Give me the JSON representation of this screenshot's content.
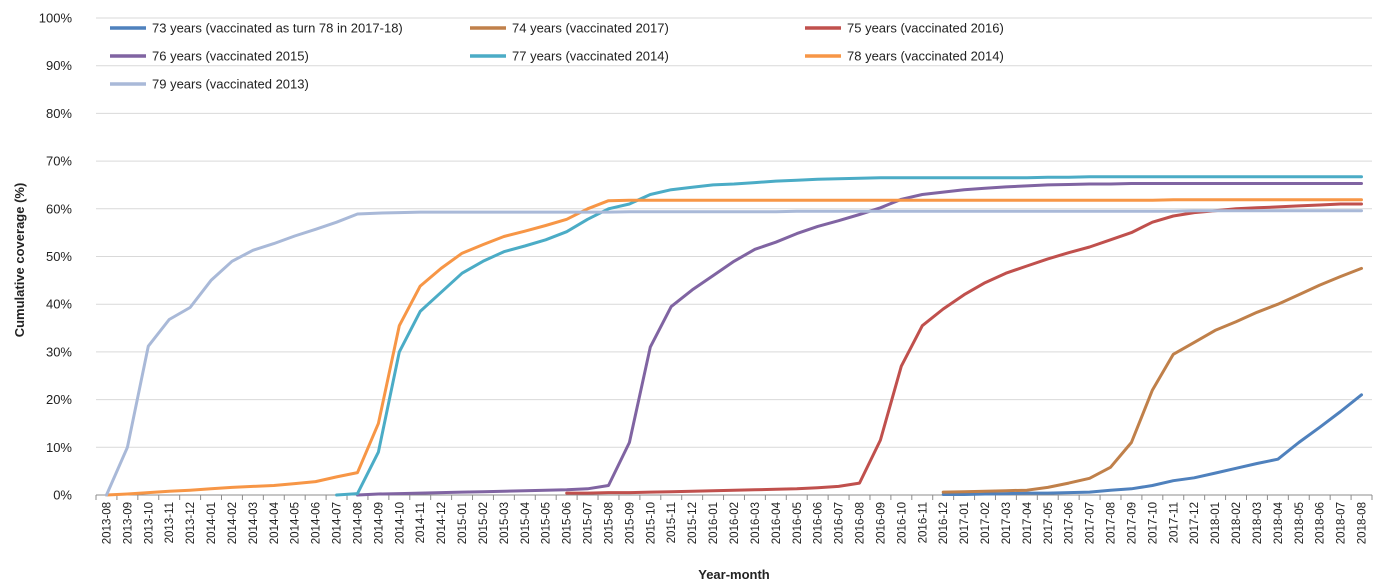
{
  "chart_data": {
    "type": "line",
    "xlabel": "Year-month",
    "ylabel": "Cumulative coverage (%)",
    "ylim": [
      0,
      100
    ],
    "yticks": [
      "0%",
      "10%",
      "20%",
      "30%",
      "40%",
      "50%",
      "60%",
      "70%",
      "80%",
      "90%",
      "100%"
    ],
    "grid": "horizontal",
    "legend_position": "top",
    "categories": [
      "2013-08",
      "2013-09",
      "2013-10",
      "2013-11",
      "2013-12",
      "2014-01",
      "2014-02",
      "2014-03",
      "2014-04",
      "2014-05",
      "2014-06",
      "2014-07",
      "2014-08",
      "2014-09",
      "2014-10",
      "2014-11",
      "2014-12",
      "2015-01",
      "2015-02",
      "2015-03",
      "2015-04",
      "2015-05",
      "2015-06",
      "2015-07",
      "2015-08",
      "2015-09",
      "2015-10",
      "2015-11",
      "2015-12",
      "2016-01",
      "2016-02",
      "2016-03",
      "2016-04",
      "2016-05",
      "2016-06",
      "2016-07",
      "2016-08",
      "2016-09",
      "2016-10",
      "2016-11",
      "2016-12",
      "2017-01",
      "2017-02",
      "2017-03",
      "2017-04",
      "2017-05",
      "2017-06",
      "2017-07",
      "2017-08",
      "2017-09",
      "2017-10",
      "2017-11",
      "2017-12",
      "2018-01",
      "2018-02",
      "2018-03",
      "2018-04",
      "2018-05",
      "2018-06",
      "2018-07",
      "2018-08"
    ],
    "series": [
      {
        "name": "73 years (vaccinated as turn 78 in 2017-18)",
        "color": "#4F81BD",
        "values": [
          null,
          null,
          null,
          null,
          null,
          null,
          null,
          null,
          null,
          null,
          null,
          null,
          null,
          null,
          null,
          null,
          null,
          null,
          null,
          null,
          null,
          null,
          null,
          null,
          null,
          null,
          null,
          null,
          null,
          null,
          null,
          null,
          null,
          null,
          null,
          null,
          null,
          null,
          null,
          null,
          0.1,
          0.1,
          0.2,
          0.3,
          0.4,
          0.4,
          0.5,
          0.6,
          1.0,
          1.3,
          2.0,
          3.0,
          3.6,
          4.6,
          5.6,
          6.6,
          7.5,
          11.0,
          14.2,
          17.5,
          21.0
        ]
      },
      {
        "name": "74 years (vaccinated 2017)",
        "color": "#C0804A",
        "values": [
          null,
          null,
          null,
          null,
          null,
          null,
          null,
          null,
          null,
          null,
          null,
          null,
          null,
          null,
          null,
          null,
          null,
          null,
          null,
          null,
          null,
          null,
          null,
          null,
          null,
          null,
          null,
          null,
          null,
          null,
          null,
          null,
          null,
          null,
          null,
          null,
          null,
          null,
          null,
          null,
          0.6,
          0.7,
          0.8,
          0.9,
          1.0,
          1.6,
          2.5,
          3.5,
          5.8,
          11.0,
          22.0,
          29.5,
          32.0,
          34.5,
          36.3,
          38.3,
          40.0,
          42.0,
          44.0,
          45.8,
          47.5
        ]
      },
      {
        "name": "75 years (vaccinated 2016)",
        "color": "#C0504D",
        "values": [
          null,
          null,
          null,
          null,
          null,
          null,
          null,
          null,
          null,
          null,
          null,
          null,
          null,
          null,
          null,
          null,
          null,
          null,
          null,
          null,
          null,
          null,
          0.4,
          0.4,
          0.5,
          0.5,
          0.6,
          0.7,
          0.8,
          0.9,
          1.0,
          1.1,
          1.2,
          1.3,
          1.5,
          1.8,
          2.5,
          11.5,
          27.0,
          35.5,
          39.0,
          42.0,
          44.5,
          46.5,
          48.0,
          49.5,
          50.8,
          52.0,
          53.5,
          55.0,
          57.2,
          58.5,
          59.2,
          59.6,
          60.0,
          60.2,
          60.4,
          60.6,
          60.8,
          61.0,
          61.0
        ]
      },
      {
        "name": "76 years (vaccinated 2015)",
        "color": "#8064A2",
        "values": [
          null,
          null,
          null,
          null,
          null,
          null,
          null,
          null,
          null,
          null,
          null,
          null,
          0.0,
          0.2,
          0.3,
          0.4,
          0.5,
          0.6,
          0.7,
          0.8,
          0.9,
          1.0,
          1.1,
          1.3,
          2.0,
          11.0,
          31.0,
          39.5,
          43.0,
          46.0,
          49.0,
          51.5,
          53.0,
          54.8,
          56.3,
          57.5,
          58.8,
          60.2,
          62.0,
          63.0,
          63.5,
          64.0,
          64.3,
          64.6,
          64.8,
          65.0,
          65.1,
          65.2,
          65.2,
          65.3,
          65.3,
          65.3,
          65.3,
          65.3,
          65.3,
          65.3,
          65.3,
          65.3,
          65.3,
          65.3,
          65.3
        ]
      },
      {
        "name": "77 years (vaccinated 2014)",
        "color": "#4BACC6",
        "values": [
          null,
          null,
          null,
          null,
          null,
          null,
          null,
          null,
          null,
          null,
          null,
          0.0,
          0.3,
          9.0,
          30.0,
          38.5,
          42.5,
          46.5,
          49.0,
          51.0,
          52.2,
          53.5,
          55.2,
          57.8,
          60.0,
          61.0,
          63.0,
          64.0,
          64.5,
          65.0,
          65.2,
          65.5,
          65.8,
          66.0,
          66.2,
          66.3,
          66.4,
          66.5,
          66.5,
          66.5,
          66.5,
          66.5,
          66.5,
          66.5,
          66.5,
          66.6,
          66.6,
          66.7,
          66.7,
          66.7,
          66.7,
          66.7,
          66.7,
          66.7,
          66.7,
          66.7,
          66.7,
          66.7,
          66.7,
          66.7,
          66.7
        ]
      },
      {
        "name": "78 years (vaccinated 2014)",
        "color": "#F79646",
        "values": [
          0.0,
          0.2,
          0.5,
          0.8,
          1.0,
          1.3,
          1.6,
          1.8,
          2.0,
          2.4,
          2.8,
          3.8,
          4.7,
          15.0,
          35.5,
          43.8,
          47.5,
          50.7,
          52.5,
          54.2,
          55.3,
          56.5,
          57.8,
          60.0,
          61.7,
          61.8,
          61.8,
          61.8,
          61.8,
          61.8,
          61.8,
          61.8,
          61.8,
          61.8,
          61.8,
          61.8,
          61.8,
          61.8,
          61.8,
          61.8,
          61.8,
          61.8,
          61.8,
          61.8,
          61.8,
          61.8,
          61.8,
          61.8,
          61.8,
          61.8,
          61.8,
          61.9,
          61.9,
          61.9,
          61.9,
          61.9,
          61.9,
          61.9,
          61.9,
          61.9,
          61.9
        ]
      },
      {
        "name": "79 years (vaccinated 2013)",
        "color": "#A9B9D8",
        "values": [
          0.0,
          10.0,
          31.2,
          36.8,
          39.3,
          45.0,
          49.0,
          51.3,
          52.7,
          54.3,
          55.7,
          57.2,
          58.9,
          59.1,
          59.2,
          59.3,
          59.3,
          59.3,
          59.3,
          59.3,
          59.3,
          59.3,
          59.3,
          59.3,
          59.3,
          59.4,
          59.4,
          59.4,
          59.4,
          59.4,
          59.4,
          59.4,
          59.4,
          59.5,
          59.5,
          59.5,
          59.5,
          59.5,
          59.5,
          59.5,
          59.5,
          59.5,
          59.5,
          59.5,
          59.5,
          59.5,
          59.5,
          59.5,
          59.5,
          59.5,
          59.5,
          59.5,
          59.6,
          59.6,
          59.6,
          59.6,
          59.6,
          59.6,
          59.6,
          59.6,
          59.6
        ]
      }
    ]
  }
}
